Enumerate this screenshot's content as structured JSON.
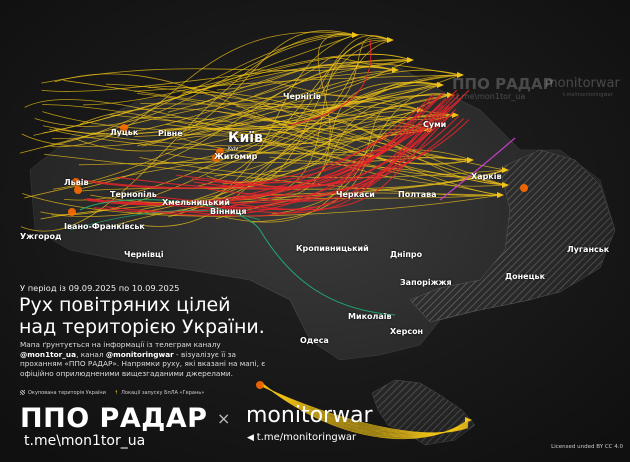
{
  "header": {
    "period": "У період із 09.09.2025 по 10.09.2025",
    "title_line1": "Рух повітряних цілей",
    "title_line2": "над територією України.",
    "desc_1": "Мапа ґрунтується на інформації із телеграм каналу",
    "desc_handle1": "@mon1tor_ua",
    "desc_2": ", канал",
    "desc_handle2": "@monitoringwar",
    "desc_3": " - візуалізує її за проханням «ППО РАДАР». Напрямки руху, які вказані на мапі, є офіційно оприлюдненими вищезгаданими джерелами."
  },
  "legend": {
    "occupied": "Окупована територія України",
    "launch_sites": "Локації запуску БпЛА «Герань»"
  },
  "branding": {
    "ppo": "ППО РАДАР",
    "ppo_link": "t.me\\mon1tor_ua",
    "separator": "×",
    "monitorwar": "monitorwar",
    "monitorwar_link": "t.me/monitoringwar",
    "license": "Licensed unded BY CC 4.0",
    "watermark_ppo": "ППО РАДАР",
    "watermark_ppo_link": "t.me\\mon1tor_ua",
    "watermark_mw": "monitorwar",
    "watermark_mw_link": "t.me/monitoringwar"
  },
  "cities": [
    {
      "name": "Чернігів"
    },
    {
      "name": "Луцьк"
    },
    {
      "name": "Рівне"
    },
    {
      "name": "Київ",
      "sub": "Kyiv"
    },
    {
      "name": "Житомир"
    },
    {
      "name": "Суми"
    },
    {
      "name": "Львів"
    },
    {
      "name": "Тернопіль"
    },
    {
      "name": "Хмельницький"
    },
    {
      "name": "Вінниця"
    },
    {
      "name": "Черкаси"
    },
    {
      "name": "Полтава"
    },
    {
      "name": "Харків"
    },
    {
      "name": "Івано-Франківськ"
    },
    {
      "name": "Ужгород"
    },
    {
      "name": "Чернівці"
    },
    {
      "name": "Кропивницький"
    },
    {
      "name": "Дніпро"
    },
    {
      "name": "Луганськ"
    },
    {
      "name": "Донецьк"
    },
    {
      "name": "Запоріжжя"
    },
    {
      "name": "Миколаїв"
    },
    {
      "name": "Херсон"
    },
    {
      "name": "Одеса"
    }
  ],
  "colors": {
    "drone_track": "#f2c417",
    "missile_track": "#e8242a",
    "other_track_green": "#1fb777",
    "other_track_magenta": "#d63fd8",
    "impact": "#ff6a00",
    "background": "#1e1e1e",
    "occupied_hatch": "#8a8a8a"
  }
}
